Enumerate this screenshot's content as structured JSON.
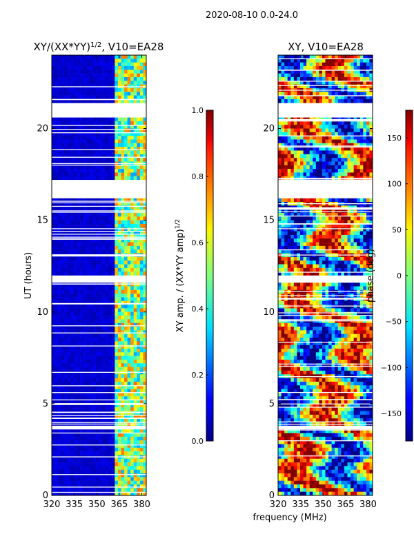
{
  "figure": {
    "suptitle": "2020-08-10 0.0-24.0",
    "shared_xlabel": "frequency (MHz)"
  },
  "chart_data": [
    {
      "type": "heatmap",
      "title_main": "XY/(XX*YY)",
      "title_exp": "1/2",
      "title_rest": ", V10=EA28",
      "xlim": [
        320,
        383
      ],
      "xticks": [
        "320",
        "335",
        "350",
        "365",
        "380"
      ],
      "xtick_values": [
        320,
        335,
        350,
        365,
        380
      ],
      "ylim": [
        0,
        24
      ],
      "yticks": [
        "0",
        "5",
        "10",
        "15",
        "20"
      ],
      "ytick_values": [
        0,
        5,
        10,
        15,
        20
      ],
      "ylabel": "UT (hours)",
      "colorscale": "jet",
      "background_level": 0.05,
      "band_start_mhz": 362,
      "band_level": 0.45,
      "gaps_hours": [
        [
          21.3,
          20.6
        ],
        [
          17.2,
          16.2
        ],
        [
          11.9,
          11.6
        ],
        [
          3.8,
          3.6
        ]
      ],
      "colorbar": {
        "range": [
          0,
          1
        ],
        "ticks": [
          "0.0",
          "0.2",
          "0.4",
          "0.6",
          "0.8",
          "1.0"
        ],
        "tick_values": [
          0,
          0.2,
          0.4,
          0.6,
          0.8,
          1.0
        ],
        "label_main": "XY amp. / (XX*YY amp)",
        "label_exp": "1/2"
      }
    },
    {
      "type": "heatmap",
      "title": "XY, V10=EA28",
      "xlim": [
        320,
        383
      ],
      "xticks": [
        "320",
        "335",
        "350",
        "365",
        "380"
      ],
      "xtick_values": [
        320,
        335,
        350,
        365,
        380
      ],
      "ylim": [
        0,
        24
      ],
      "yticks": [
        "0",
        "5",
        "10",
        "15",
        "20"
      ],
      "ytick_values": [
        0,
        5,
        10,
        15,
        20
      ],
      "colorscale": "jet",
      "gaps_hours": [
        [
          21.3,
          20.6
        ],
        [
          17.2,
          16.2
        ],
        [
          11.9,
          11.6
        ],
        [
          3.8,
          3.6
        ]
      ],
      "colorbar": {
        "range": [
          -180,
          180
        ],
        "ticks": [
          "−150",
          "−100",
          "−50",
          "0",
          "50",
          "100",
          "150"
        ],
        "tick_values": [
          -150,
          -100,
          -50,
          0,
          50,
          100,
          150
        ],
        "label": "phase (deg)"
      }
    }
  ]
}
